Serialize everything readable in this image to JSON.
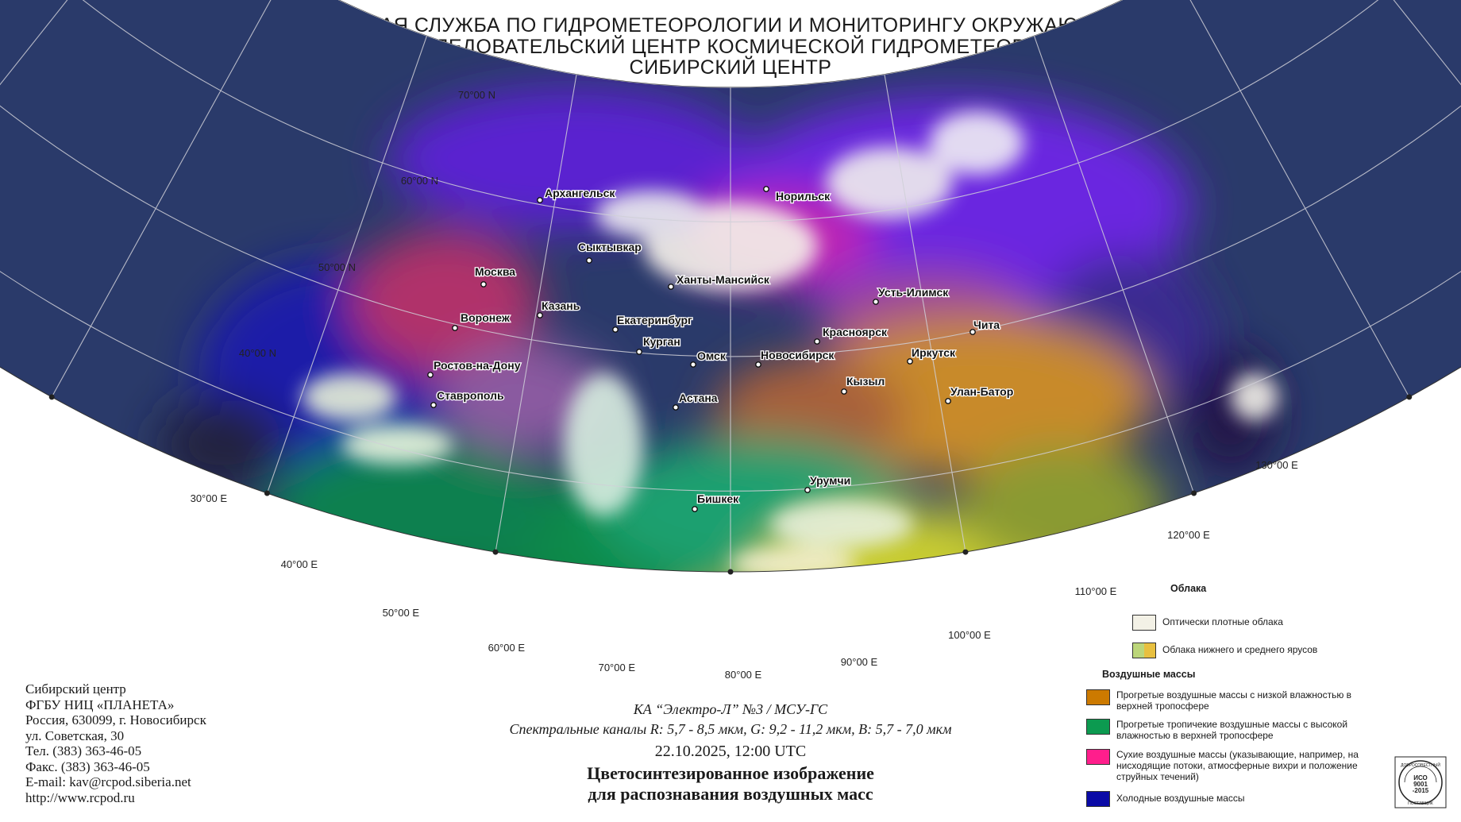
{
  "header": {
    "line1": "ФЕДЕРАЛЬНАЯ СЛУЖБА ПО ГИДРОМЕТЕОРОЛОГИИ И МОНИТОРИНГУ ОКРУЖАЮЩЕЙ СРЕДЫ",
    "line2": "ФГБУ \"НАУЧНО-ИССЛЕДОВАТЕЛЬСКИЙ ЦЕНТР КОСМИЧЕСКОЙ ГИДРОМЕТЕОРОЛОГИИ \"ПЛАНЕТА\"",
    "line3": "СИБИРСКИЙ ЦЕНТР"
  },
  "map": {
    "lat_labels": [
      "70°00 N",
      "60°00 N",
      "50°00 N",
      "40°00 N"
    ],
    "lon_labels": [
      "30°00 E",
      "40°00 E",
      "50°00 E",
      "60°00 E",
      "70°00 E",
      "80°00 E",
      "90°00 E",
      "100°00 E",
      "110°00 E",
      "120°00 E",
      "130°00 E"
    ],
    "cities": [
      {
        "name": "Архангельск"
      },
      {
        "name": "Норильск"
      },
      {
        "name": "Сыктывкар"
      },
      {
        "name": "Ханты-Мансийск"
      },
      {
        "name": "Москва"
      },
      {
        "name": "Казань"
      },
      {
        "name": "Воронеж"
      },
      {
        "name": "Екатеринбург"
      },
      {
        "name": "Усть-Илимск"
      },
      {
        "name": "Красноярск"
      },
      {
        "name": "Чита"
      },
      {
        "name": "Курган"
      },
      {
        "name": "Омск"
      },
      {
        "name": "Новосибирск"
      },
      {
        "name": "Иркутск"
      },
      {
        "name": "Ростов-на-Дону"
      },
      {
        "name": "Кызыл"
      },
      {
        "name": "Улан-Батор"
      },
      {
        "name": "Ставрополь"
      },
      {
        "name": "Астана"
      },
      {
        "name": "Урумчи"
      },
      {
        "name": "Бишкек"
      }
    ]
  },
  "contacts": [
    "Сибирский центр",
    "ФГБУ НИЦ «ПЛАНЕТА»",
    "Россия, 630099, г. Новосибирск",
    "ул. Советская, 30",
    "Тел. (383) 363-46-05",
    "Факс. (383) 363-46-05",
    "E-mail: kav@rcpod.siberia.net",
    "http://www.rcpod.ru"
  ],
  "caption": {
    "satellite": "КА “Электро-Л” №3 / МСУ-ГС",
    "channels": "Спектральные каналы R: 5,7 - 8,5 мкм, G: 9,2 - 11,2 мкм, B: 5,7 - 7,0 мкм",
    "datetime": "22.10.2025, 12:00 UTC",
    "title1": "Цветосинтезированное изображение",
    "title2": "для распознавания воздушных масс"
  },
  "legend": {
    "clouds_title": "Облака",
    "clouds": [
      {
        "label": "Оптически плотные облака",
        "colors": [
          "#f3f1e6"
        ]
      },
      {
        "label": "Облака нижнего и среднего ярусов",
        "colors": [
          "#bcd67a",
          "#e8c040"
        ]
      }
    ],
    "masses_title": "Воздушные массы",
    "masses": [
      {
        "label": "Прогретые воздушные массы с низкой влажностью в верхней тропосфере",
        "colors": [
          "#cc7a00"
        ]
      },
      {
        "label": "Прогретые тропичекие воздушные массы с высокой влажностью в верхней тропосфере",
        "colors": [
          "#0c9a50"
        ]
      },
      {
        "label": "Сухие воздушные массы (указывающие, например, на нисходящие потоки, атмосферные вихри и положение струйных течений)",
        "colors": [
          "#ff1e8c"
        ]
      },
      {
        "label": "Холодные воздушные массы",
        "colors": [
          "#0a0aa6"
        ]
      }
    ]
  },
  "badges": {
    "iso_text": "ИСО 9001 -2015",
    "iso_arc_top": "ДОБРОСОВЕСТНЫЙ",
    "iso_arc_bottom": "ПОСТАВЩИК"
  },
  "colors": {
    "cold": "#1b1ab0",
    "dry": "#e0208c",
    "warm_dry": "#cc7a00",
    "warm_moist": "#0c9a50",
    "cloud_dense": "#f5f3ea",
    "cloud_low": "#d6d850"
  }
}
